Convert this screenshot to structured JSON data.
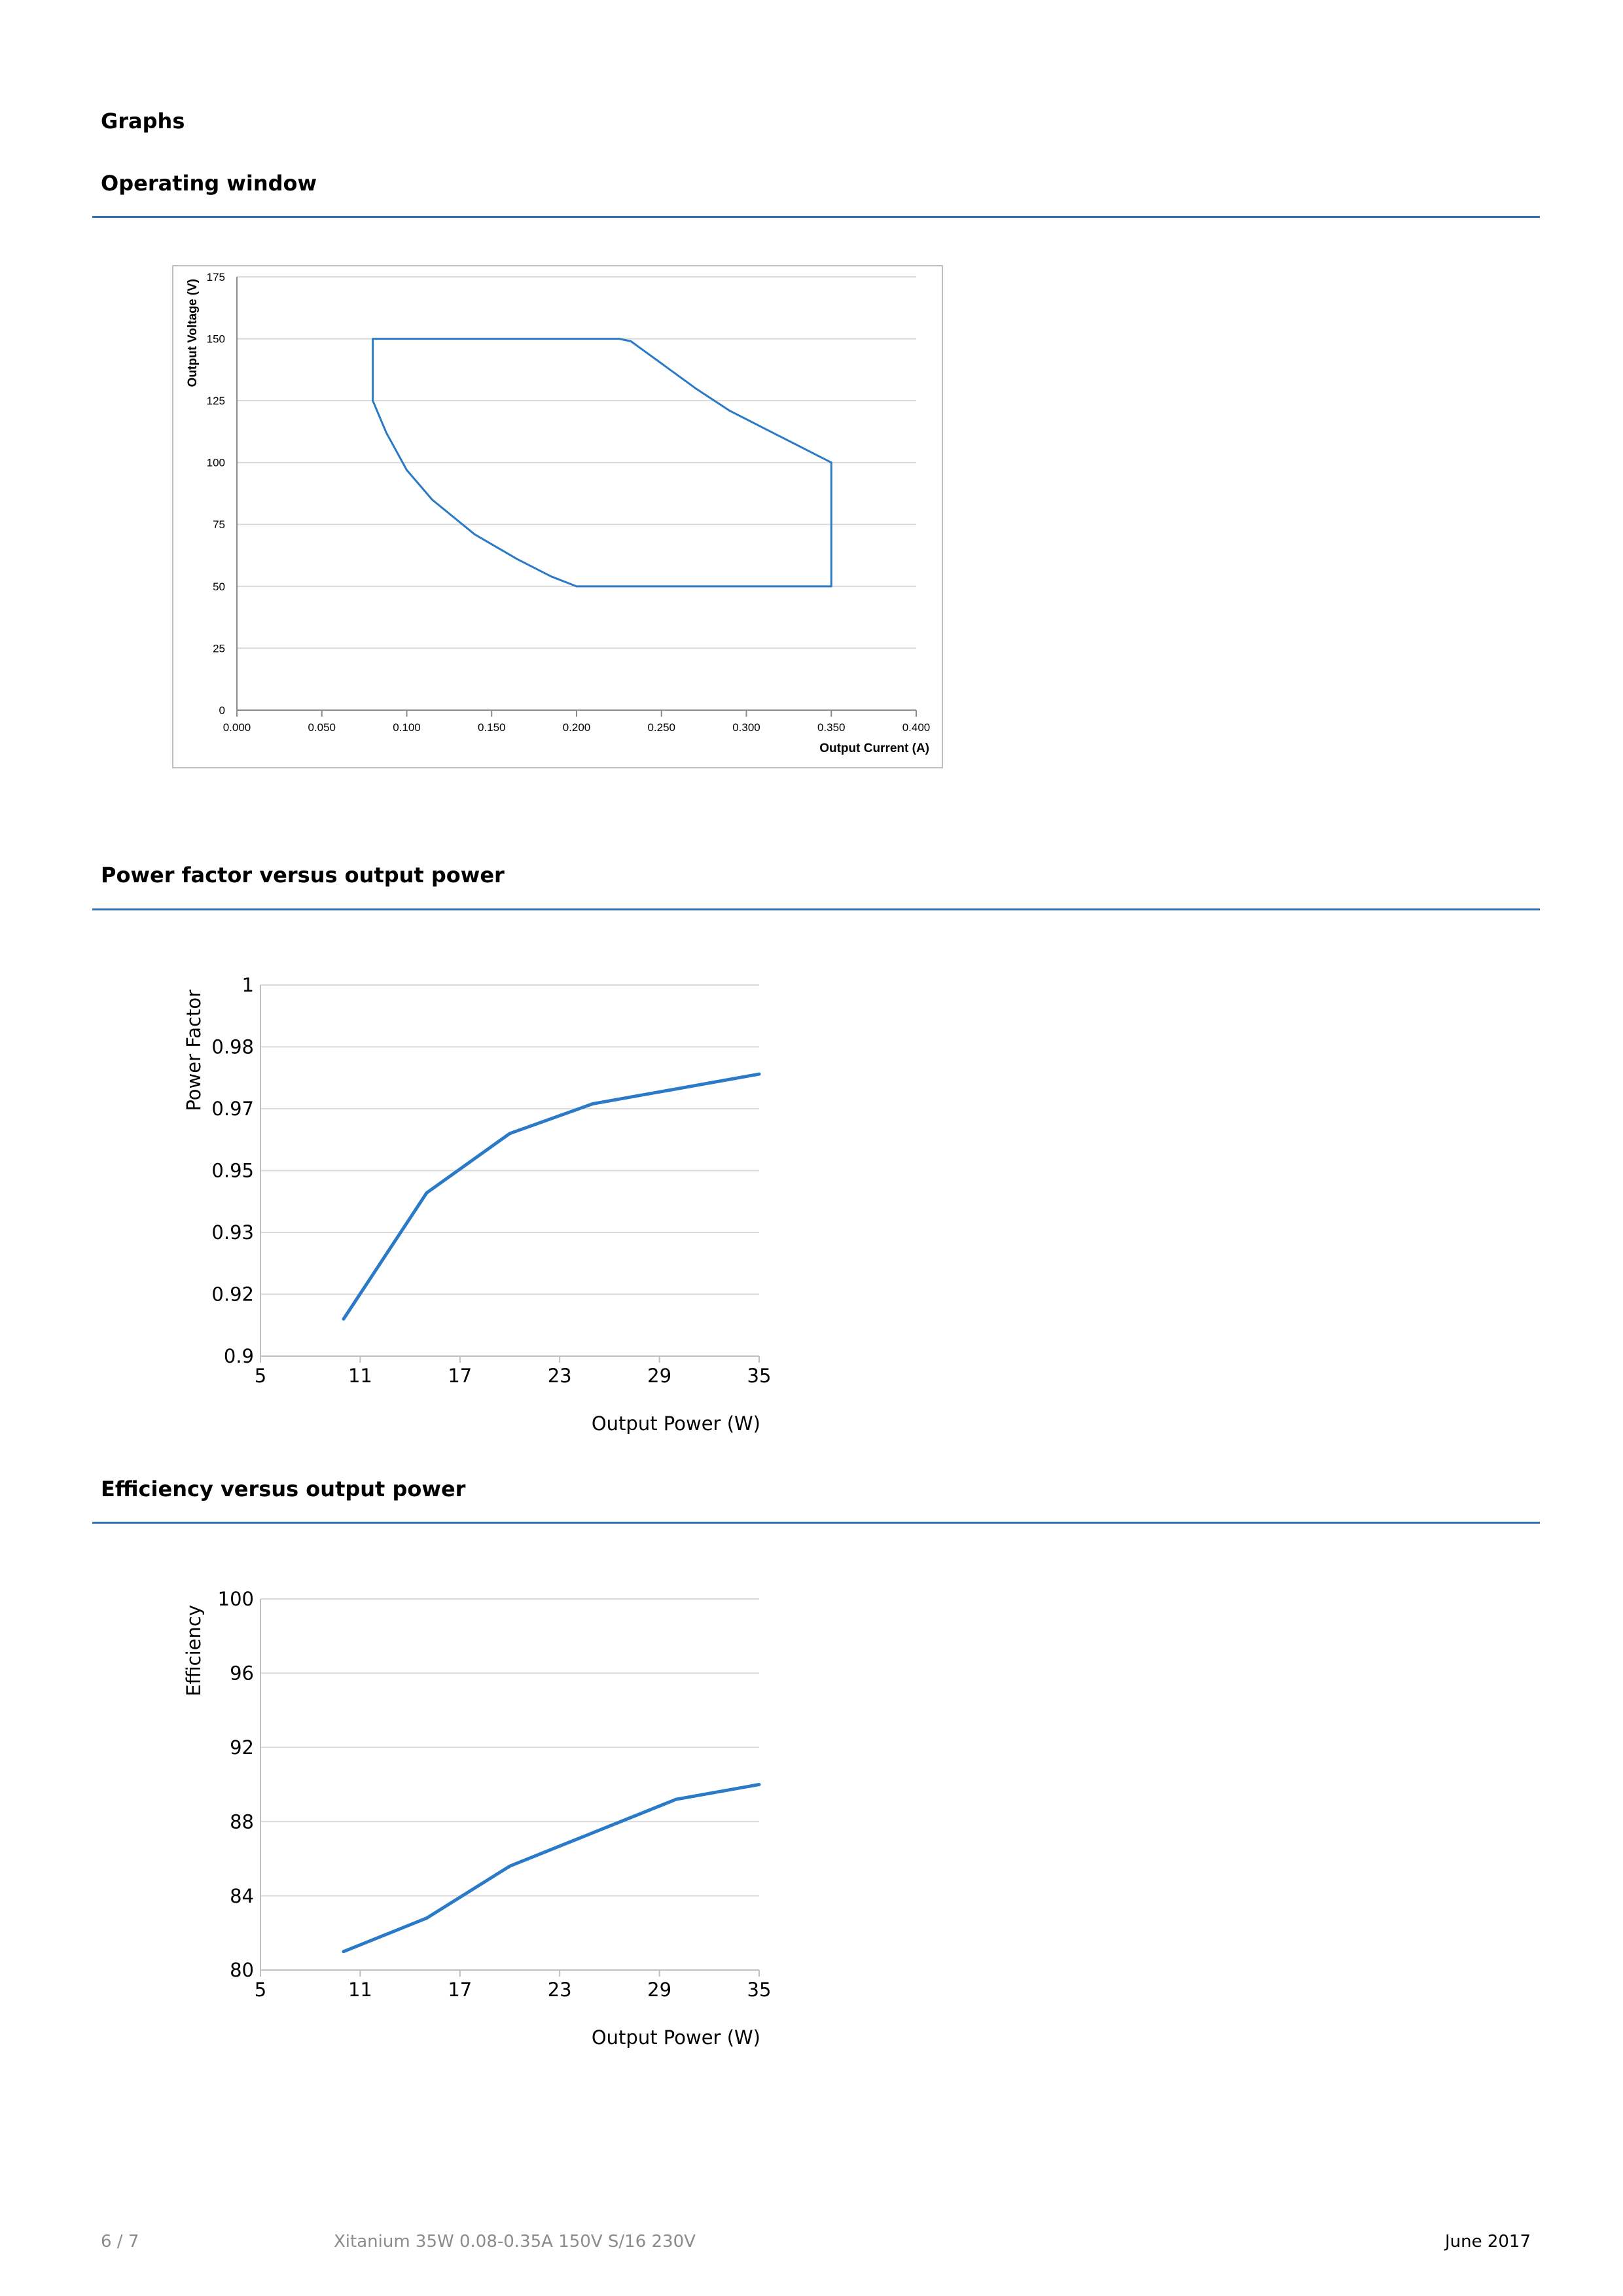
{
  "page": {
    "heading": "Graphs",
    "sections": [
      {
        "title": "Operating window"
      },
      {
        "title": "Power factor versus output power"
      },
      {
        "title": "Efficiency versus output power"
      }
    ]
  },
  "footer": {
    "page_number": "6 / 7",
    "product": "Xitanium 35W 0.08-0.35A 150V S/16 230V",
    "date": "June 2017"
  },
  "colors": {
    "accent": "#2f6fb5",
    "series": "#2a7ac7",
    "grid": "#d9d9d9"
  },
  "chart_data": [
    {
      "type": "line",
      "title": "",
      "xlabel": "Output Current (A)",
      "ylabel": "Output Voltage (V)",
      "xlim": [
        0,
        0.4
      ],
      "ylim": [
        0,
        175
      ],
      "x_ticks": [
        "0.000",
        "0.050",
        "0.100",
        "0.150",
        "0.200",
        "0.250",
        "0.300",
        "0.350",
        "0.400"
      ],
      "y_ticks": [
        "0",
        "25",
        "50",
        "75",
        "100",
        "125",
        "150",
        "175"
      ],
      "grid": true,
      "legend": "none",
      "series": [
        {
          "x": [
            0.08,
            0.225,
            0.232,
            0.238,
            0.25,
            0.27,
            0.29,
            0.31,
            0.33,
            0.35,
            0.35,
            0.2,
            0.185,
            0.165,
            0.14,
            0.115,
            0.1,
            0.088,
            0.08,
            0.08
          ],
          "y": [
            150,
            150,
            149,
            146,
            140,
            130,
            121,
            114,
            107,
            100,
            50,
            50,
            54,
            61,
            71,
            85,
            97,
            112,
            125,
            150
          ]
        }
      ]
    },
    {
      "type": "line",
      "title": "",
      "xlabel": "Output Power (W)",
      "ylabel": "Power Factor",
      "xlim": [
        5,
        35
      ],
      "ylim": [
        0.9,
        1
      ],
      "x_ticks": [
        "5",
        "11",
        "17",
        "23",
        "29",
        "35"
      ],
      "y_ticks": [
        "0.9",
        "0.92",
        "0.93",
        "0.95",
        "0.97",
        "0.98",
        "1"
      ],
      "grid": true,
      "legend": "none",
      "series": [
        {
          "x": [
            10,
            15,
            20,
            25,
            30,
            35
          ],
          "y": [
            0.91,
            0.944,
            0.96,
            0.968,
            0.972,
            0.976
          ]
        }
      ]
    },
    {
      "type": "line",
      "title": "",
      "xlabel": "Output Power (W)",
      "ylabel": "Efficiency",
      "xlim": [
        5,
        35
      ],
      "ylim": [
        80,
        100
      ],
      "x_ticks": [
        "5",
        "11",
        "17",
        "23",
        "29",
        "35"
      ],
      "y_ticks": [
        "80",
        "84",
        "88",
        "92",
        "96",
        "100"
      ],
      "grid": true,
      "legend": "none",
      "series": [
        {
          "x": [
            10,
            15,
            20,
            25,
            30,
            35
          ],
          "y": [
            81,
            82.8,
            85.6,
            87.4,
            89.2,
            90
          ]
        }
      ]
    }
  ]
}
